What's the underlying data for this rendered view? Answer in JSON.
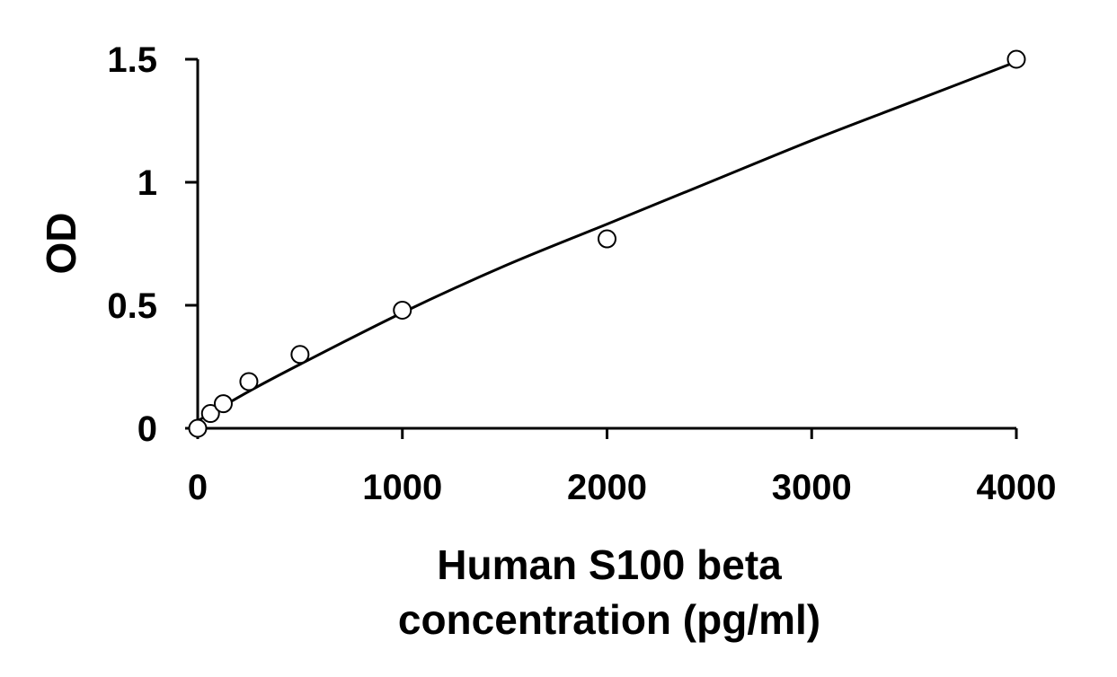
{
  "chart_data": {
    "type": "scatter",
    "xlabel_lines": [
      "Human S100 beta",
      "concentration (pg/ml)"
    ],
    "ylabel": "OD",
    "xlim": [
      0,
      4000
    ],
    "ylim": [
      0,
      1.5
    ],
    "x_ticks": [
      0,
      1000,
      2000,
      3000,
      4000
    ],
    "x_tick_labels": [
      "0",
      "1000",
      "2000",
      "3000",
      "4000"
    ],
    "y_ticks": [
      0,
      0.5,
      1,
      1.5
    ],
    "y_tick_labels": [
      "0",
      "0.5",
      "1",
      "1.5"
    ],
    "grid": false,
    "legend": "none",
    "series": [
      {
        "marker": "open-circle",
        "points": [
          {
            "x": 0,
            "y": 0.0
          },
          {
            "x": 62.5,
            "y": 0.06
          },
          {
            "x": 125,
            "y": 0.1
          },
          {
            "x": 250,
            "y": 0.19
          },
          {
            "x": 500,
            "y": 0.3
          },
          {
            "x": 1000,
            "y": 0.48
          },
          {
            "x": 2000,
            "y": 0.77
          },
          {
            "x": 4000,
            "y": 1.5
          }
        ]
      }
    ],
    "fit_line": {
      "type": "curve",
      "points": [
        {
          "x": 0,
          "y": 0.03
        },
        {
          "x": 250,
          "y": 0.15
        },
        {
          "x": 500,
          "y": 0.26
        },
        {
          "x": 1000,
          "y": 0.47
        },
        {
          "x": 1500,
          "y": 0.66
        },
        {
          "x": 2000,
          "y": 0.83
        },
        {
          "x": 2500,
          "y": 1.0
        },
        {
          "x": 3000,
          "y": 1.17
        },
        {
          "x": 3500,
          "y": 1.33
        },
        {
          "x": 4000,
          "y": 1.49
        }
      ]
    },
    "colors": {
      "line": "#000000",
      "marker_fill": "#ffffff",
      "marker_stroke": "#000000",
      "text": "#000000"
    }
  }
}
